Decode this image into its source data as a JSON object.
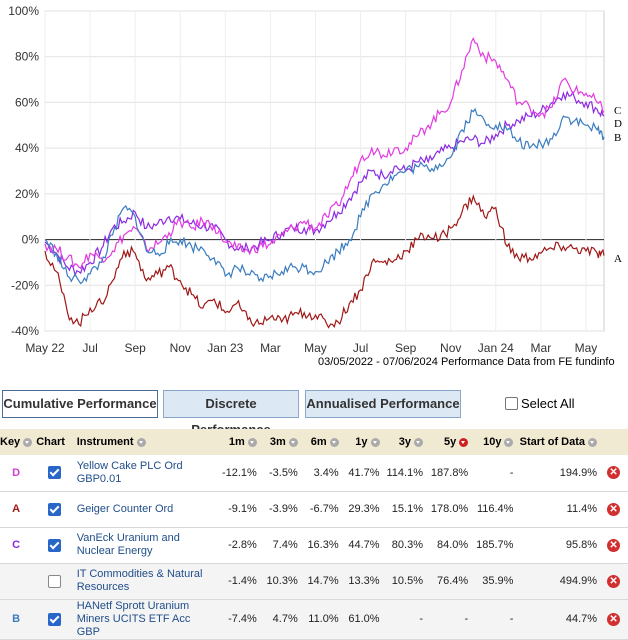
{
  "chart_data": {
    "type": "line",
    "yticks": [
      "100%",
      "80%",
      "60%",
      "40%",
      "20%",
      "0%",
      "-20%",
      "-40%"
    ],
    "ylim": [
      -40,
      100
    ],
    "xticks": [
      "May 22",
      "Jul",
      "Sep",
      "Nov",
      "Jan 23",
      "Mar",
      "May",
      "Jul",
      "Sep",
      "Nov",
      "Jan 24",
      "Mar",
      "May"
    ],
    "x_months": [
      "2022-05",
      "2022-07",
      "2022-09",
      "2022-11",
      "2023-01",
      "2023-03",
      "2023-05",
      "2023-07",
      "2023-09",
      "2023-11",
      "2024-01",
      "2024-03",
      "2024-05"
    ],
    "caption": "03/05/2022 - 07/06/2024 Performance Data from FE fundinfo",
    "series": [
      {
        "name": "C",
        "color": "#8a2be2",
        "points": [
          [
            0,
            -1
          ],
          [
            0.5,
            -6
          ],
          [
            1,
            -12
          ],
          [
            1.5,
            -14
          ],
          [
            2,
            -10
          ],
          [
            2.5,
            -4
          ],
          [
            3,
            5
          ],
          [
            3.5,
            8
          ],
          [
            4,
            12
          ],
          [
            4.5,
            5
          ],
          [
            5,
            7
          ],
          [
            5.5,
            10
          ],
          [
            6,
            9
          ],
          [
            6.5,
            7
          ],
          [
            7,
            6
          ],
          [
            7.5,
            5
          ],
          [
            8,
            0
          ],
          [
            8.5,
            -4
          ],
          [
            9,
            -4
          ],
          [
            9.5,
            -2
          ],
          [
            10,
            0
          ],
          [
            10.5,
            3
          ],
          [
            11,
            5
          ],
          [
            11.5,
            5
          ],
          [
            12,
            4
          ],
          [
            12.5,
            8
          ],
          [
            13,
            12
          ],
          [
            13.5,
            18
          ],
          [
            14,
            25
          ],
          [
            14.5,
            30
          ],
          [
            15,
            28
          ],
          [
            15.5,
            32
          ],
          [
            16,
            30
          ],
          [
            16.5,
            34
          ],
          [
            17,
            34
          ],
          [
            17.5,
            38
          ],
          [
            18,
            40
          ],
          [
            18.5,
            43
          ],
          [
            19,
            44
          ],
          [
            19.5,
            42
          ],
          [
            20,
            46
          ],
          [
            20.5,
            50
          ],
          [
            21,
            52
          ],
          [
            21.5,
            54
          ],
          [
            22,
            56
          ],
          [
            22.5,
            60
          ],
          [
            23,
            64
          ],
          [
            23.5,
            62
          ],
          [
            24,
            60
          ],
          [
            24.5,
            57
          ],
          [
            24.8,
            54
          ]
        ]
      },
      {
        "name": "D",
        "color": "#e23be2",
        "points": [
          [
            0,
            -2
          ],
          [
            0.5,
            -4
          ],
          [
            1,
            -8
          ],
          [
            1.5,
            -12
          ],
          [
            2,
            -6
          ],
          [
            2.5,
            -8
          ],
          [
            3,
            -5
          ],
          [
            3.5,
            2
          ],
          [
            4,
            5
          ],
          [
            4.5,
            -4
          ],
          [
            5,
            -2
          ],
          [
            5.5,
            3
          ],
          [
            6,
            8
          ],
          [
            6.5,
            5
          ],
          [
            7,
            8
          ],
          [
            7.5,
            6
          ],
          [
            8,
            -1
          ],
          [
            8.5,
            -4
          ],
          [
            9,
            -5
          ],
          [
            9.5,
            -3
          ],
          [
            10,
            -2
          ],
          [
            10.5,
            2
          ],
          [
            11,
            5
          ],
          [
            11.5,
            8
          ],
          [
            12,
            5
          ],
          [
            12.5,
            10
          ],
          [
            13,
            15
          ],
          [
            13.5,
            25
          ],
          [
            14,
            35
          ],
          [
            14.5,
            40
          ],
          [
            15,
            37
          ],
          [
            15.5,
            40
          ],
          [
            16,
            40
          ],
          [
            16.5,
            45
          ],
          [
            17,
            50
          ],
          [
            17.5,
            55
          ],
          [
            18,
            60
          ],
          [
            18.5,
            74
          ],
          [
            19,
            88
          ],
          [
            19.5,
            80
          ],
          [
            20,
            78
          ],
          [
            20.5,
            70
          ],
          [
            21,
            60
          ],
          [
            21.5,
            58
          ],
          [
            22,
            55
          ],
          [
            22.5,
            58
          ],
          [
            23,
            70
          ],
          [
            23.5,
            65
          ],
          [
            24,
            64
          ],
          [
            24.5,
            60
          ],
          [
            24.8,
            56
          ]
        ]
      },
      {
        "name": "B",
        "color": "#3a7cc0",
        "points": [
          [
            0,
            0
          ],
          [
            0.5,
            -6
          ],
          [
            1,
            -16
          ],
          [
            1.5,
            -18
          ],
          [
            2,
            -15
          ],
          [
            2.5,
            -10
          ],
          [
            3,
            2
          ],
          [
            3.5,
            14
          ],
          [
            4,
            10
          ],
          [
            4.5,
            -5
          ],
          [
            5,
            -6
          ],
          [
            5.5,
            -2
          ],
          [
            6,
            0
          ],
          [
            6.5,
            -3
          ],
          [
            7,
            -4
          ],
          [
            7.5,
            -8
          ],
          [
            8,
            -16
          ],
          [
            8.5,
            -12
          ],
          [
            9,
            -15
          ],
          [
            9.5,
            -18
          ],
          [
            10,
            -16
          ],
          [
            10.5,
            -14
          ],
          [
            11,
            -12
          ],
          [
            11.5,
            -12
          ],
          [
            12,
            -14
          ],
          [
            12.5,
            -10
          ],
          [
            13,
            -5
          ],
          [
            13.5,
            0
          ],
          [
            14,
            10
          ],
          [
            14.5,
            20
          ],
          [
            15,
            24
          ],
          [
            15.5,
            28
          ],
          [
            16,
            30
          ],
          [
            16.5,
            32
          ],
          [
            17,
            31
          ],
          [
            17.5,
            33
          ],
          [
            18,
            36
          ],
          [
            18.5,
            48
          ],
          [
            19,
            56
          ],
          [
            19.5,
            52
          ],
          [
            20,
            50
          ],
          [
            20.5,
            48
          ],
          [
            21,
            43
          ],
          [
            21.5,
            40
          ],
          [
            22,
            42
          ],
          [
            22.5,
            44
          ],
          [
            23,
            54
          ],
          [
            23.5,
            52
          ],
          [
            24,
            50
          ],
          [
            24.5,
            48
          ],
          [
            24.8,
            45
          ]
        ]
      },
      {
        "name": "A",
        "color": "#a01818",
        "points": [
          [
            0,
            -5
          ],
          [
            0.5,
            -14
          ],
          [
            1,
            -32
          ],
          [
            1.5,
            -37
          ],
          [
            2,
            -30
          ],
          [
            2.5,
            -28
          ],
          [
            3,
            -18
          ],
          [
            3.5,
            -5
          ],
          [
            4,
            -6
          ],
          [
            4.5,
            -18
          ],
          [
            5,
            -15
          ],
          [
            5.5,
            -12
          ],
          [
            6,
            -18
          ],
          [
            6.5,
            -24
          ],
          [
            7,
            -30
          ],
          [
            7.5,
            -26
          ],
          [
            8,
            -32
          ],
          [
            8.5,
            -28
          ],
          [
            9,
            -35
          ],
          [
            9.5,
            -37
          ],
          [
            10,
            -34
          ],
          [
            10.5,
            -36
          ],
          [
            11,
            -33
          ],
          [
            11.5,
            -32
          ],
          [
            12,
            -33
          ],
          [
            12.5,
            -37
          ],
          [
            13,
            -36
          ],
          [
            13.5,
            -28
          ],
          [
            14,
            -22
          ],
          [
            14.5,
            -10
          ],
          [
            15,
            -10
          ],
          [
            15.5,
            -9
          ],
          [
            16,
            -5
          ],
          [
            16.5,
            0
          ],
          [
            17,
            2
          ],
          [
            17.5,
            0
          ],
          [
            18,
            5
          ],
          [
            18.5,
            12
          ],
          [
            19,
            19
          ],
          [
            19.5,
            10
          ],
          [
            20,
            14
          ],
          [
            20.5,
            -3
          ],
          [
            21,
            -8
          ],
          [
            21.5,
            -8
          ],
          [
            22,
            -6
          ],
          [
            22.5,
            -4
          ],
          [
            23,
            -3
          ],
          [
            23.5,
            -4
          ],
          [
            24,
            -5
          ],
          [
            24.5,
            -6
          ],
          [
            24.8,
            -7
          ]
        ]
      }
    ]
  },
  "tabs": {
    "cumulative": "Cumulative Performance",
    "discrete": "Discrete Performance",
    "annualised": "Annualised Performance",
    "select_all": "Select All"
  },
  "table": {
    "headers": {
      "key": "Key",
      "chart": "Chart",
      "instrument": "Instrument",
      "m1": "1m",
      "m3": "3m",
      "m6": "6m",
      "y1": "1y",
      "y3": "3y",
      "y5": "5y",
      "y10": "10y",
      "start": "Start of Data"
    },
    "rows": [
      {
        "key": "D",
        "key_color": "#d43bd4",
        "checked": true,
        "name": "Yellow Cake PLC Ord GBP0.01",
        "m1": "-12.1%",
        "m3": "-3.5%",
        "m6": "3.4%",
        "y1": "41.7%",
        "y3": "114.1%",
        "y5": "187.8%",
        "y10": "-",
        "start": "194.9%"
      },
      {
        "key": "A",
        "key_color": "#a01818",
        "checked": true,
        "name": "Geiger Counter Ord",
        "m1": "-9.1%",
        "m3": "-3.9%",
        "m6": "-6.7%",
        "y1": "29.3%",
        "y3": "15.1%",
        "y5": "178.0%",
        "y10": "116.4%",
        "start": "11.4%"
      },
      {
        "key": "C",
        "key_color": "#8a2be2",
        "checked": true,
        "name": "VanEck Uranium and Nuclear Energy",
        "m1": "-2.8%",
        "m3": "7.4%",
        "m6": "16.3%",
        "y1": "44.7%",
        "y3": "80.3%",
        "y5": "84.0%",
        "y10": "185.7%",
        "start": "95.8%"
      },
      {
        "key": "",
        "key_color": "#000000",
        "checked": false,
        "name": "IT Commodities & Natural Resources",
        "m1": "-1.4%",
        "m3": "10.3%",
        "m6": "14.7%",
        "y1": "13.3%",
        "y3": "10.5%",
        "y5": "76.4%",
        "y10": "35.9%",
        "start": "494.9%"
      },
      {
        "key": "B",
        "key_color": "#3a7cc0",
        "checked": true,
        "name": "HANetf Sprott Uranium Miners UCITS ETF Acc GBP",
        "m1": "-7.4%",
        "m3": "4.7%",
        "m6": "11.0%",
        "y1": "61.0%",
        "y3": "-",
        "y5": "-",
        "y10": "-",
        "start": "44.7%"
      }
    ]
  }
}
